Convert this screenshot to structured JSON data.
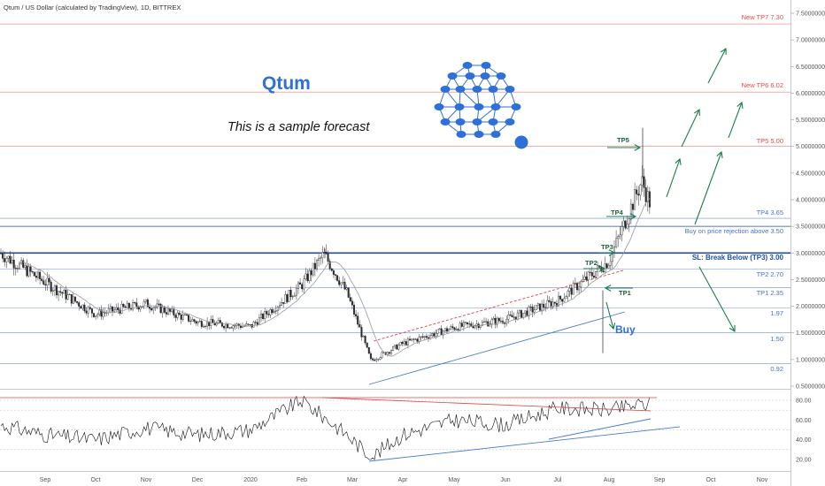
{
  "header": {
    "title": "Qtum / US Dollar (calculated by TradingView), 1D, BITTREX"
  },
  "annotation": {
    "brand": "Qtum",
    "note": "This is a sample forecast"
  },
  "colors": {
    "candle": "#2a2a2a",
    "red_level": "#f07a7a",
    "blue_level": "#6e8fd6",
    "strong_blue": "#1f4ea8",
    "green_arrow": "#1b7f4a",
    "rsi_line": "#111111",
    "trend_blue": "#4a7ad4",
    "trend_red": "#e04040",
    "logo_blue": "#2f6fd8"
  },
  "labels": {
    "tp7": "New TP7 7.30",
    "tp6": "New TP6 6.02",
    "tp5": "TP5 5.00",
    "tp4": "TP4 3.65",
    "buy_rejection": "Buy on price rejection above 3.50",
    "sl": "SL: Break Below (TP3) 3.00",
    "tp2": "TP2 2.70",
    "tp1": "TP1 2.35",
    "l197": "1.97",
    "l150": "1.50",
    "l092": "0.92",
    "mk_tp5": "TP5",
    "mk_tp4": "TP4",
    "mk_tp3": "TP3",
    "mk_tp2": "TP2",
    "mk_tp1": "TP1",
    "buy": "Buy"
  },
  "chart_data": [
    {
      "type": "candlestick",
      "title": "Qtum / US Dollar (calculated by TradingView), 1D, BITTREX",
      "x_labels": [
        "Sep",
        "Oct",
        "Nov",
        "Dec",
        "2020",
        "Feb",
        "Mar",
        "Apr",
        "May",
        "Jun",
        "Jul",
        "Aug",
        "Sep",
        "Oct",
        "Nov"
      ],
      "y_ticks": [
        "7.50000000",
        "7.00000000",
        "6.50000000",
        "6.00000000",
        "5.50000000",
        "5.00000000",
        "4.50000000",
        "4.00000000",
        "3.50000000",
        "3.00000000",
        "2.50000000",
        "2.00000000",
        "1.50000000",
        "1.00000000",
        "0.50000000"
      ],
      "ylim": [
        0.5,
        7.5
      ],
      "price_path": [
        {
          "x": "Aug 2019",
          "y": 3.0
        },
        {
          "x": "Sep 2019",
          "y": 2.45
        },
        {
          "x": "Oct 2019",
          "y": 1.85
        },
        {
          "x": "Nov 2019",
          "y": 2.05
        },
        {
          "x": "Dec 2019",
          "y": 1.7
        },
        {
          "x": "2020",
          "y": 1.62
        },
        {
          "x": "Feb 2020",
          "y": 2.4
        },
        {
          "x": "Feb 2020 peak",
          "y": 2.98
        },
        {
          "x": "Mar 2020 start",
          "y": 2.25
        },
        {
          "x": "Mar 2020 low",
          "y": 0.98
        },
        {
          "x": "Apr 2020",
          "y": 1.3
        },
        {
          "x": "May 2020",
          "y": 1.6
        },
        {
          "x": "Jun 2020",
          "y": 1.75
        },
        {
          "x": "Jul 2020",
          "y": 2.1
        },
        {
          "x": "Aug 2020",
          "y": 2.85
        },
        {
          "x": "Aug 2020 high",
          "y": 4.35
        },
        {
          "x": "Aug 2020 last",
          "y": 3.9
        }
      ],
      "levels": [
        {
          "name": "New TP7",
          "value": 7.3
        },
        {
          "name": "New TP6",
          "value": 6.02
        },
        {
          "name": "TP5",
          "value": 5.0
        },
        {
          "name": "TP4",
          "value": 3.65
        },
        {
          "name": "Buy on price rejection",
          "value": 3.5
        },
        {
          "name": "SL: Break Below (TP3)",
          "value": 3.0
        },
        {
          "name": "TP2",
          "value": 2.7
        },
        {
          "name": "TP1",
          "value": 2.35
        },
        {
          "value": 1.97
        },
        {
          "value": 1.5
        },
        {
          "value": 0.92
        }
      ]
    },
    {
      "type": "line",
      "y_ticks": [
        "80.00",
        "60.00",
        "40.00",
        "20.00"
      ],
      "ylim": [
        15,
        85
      ],
      "rsi_path": [
        {
          "x": "Aug 2019",
          "y": 55
        },
        {
          "x": "Sep 2019",
          "y": 45
        },
        {
          "x": "Oct 2019",
          "y": 40
        },
        {
          "x": "Nov 2019",
          "y": 52
        },
        {
          "x": "Dec 2019",
          "y": 45
        },
        {
          "x": "2020",
          "y": 50
        },
        {
          "x": "Feb 2020",
          "y": 80
        },
        {
          "x": "Mar 2020",
          "y": 45
        },
        {
          "x": "Mar 2020 low",
          "y": 22
        },
        {
          "x": "Apr 2020",
          "y": 45
        },
        {
          "x": "May 2020",
          "y": 60
        },
        {
          "x": "Jun 2020",
          "y": 55
        },
        {
          "x": "Jul 2020",
          "y": 72
        },
        {
          "x": "Aug 2020",
          "y": 70
        },
        {
          "x": "Aug 2020 high",
          "y": 76
        }
      ]
    }
  ]
}
